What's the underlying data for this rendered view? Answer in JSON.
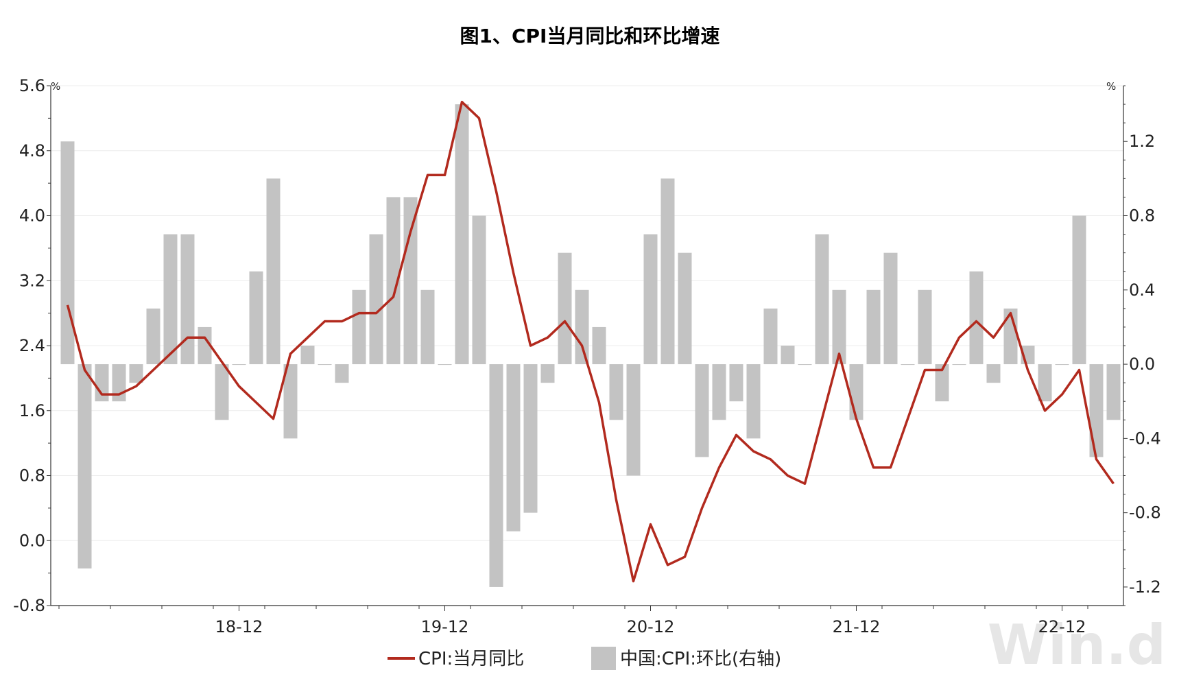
{
  "chart_data": {
    "type": "bar+line",
    "title": "图1、CPI当月同比和环比增速",
    "left_unit": "%",
    "right_unit": "%",
    "left_axis": {
      "min": -0.8,
      "max": 5.6,
      "ticks": [
        -0.8,
        0.0,
        0.8,
        1.6,
        2.4,
        3.2,
        4.0,
        4.8,
        5.6
      ],
      "tick_labels": [
        "-0.8",
        "0.0",
        "0.8",
        "1.6",
        "2.4",
        "3.2",
        "4.0",
        "4.8",
        "5.6"
      ]
    },
    "right_axis": {
      "min": -1.3,
      "max": 1.5,
      "ticks": [
        -1.2,
        -0.8,
        -0.4,
        0.0,
        0.4,
        0.8,
        1.2
      ],
      "tick_labels": [
        "-1.2",
        "-0.8",
        "-0.4",
        "0.0",
        "0.4",
        "0.8",
        "1.2"
      ]
    },
    "x_tick_labels": [
      {
        "index": 10,
        "label": "18-12"
      },
      {
        "index": 22,
        "label": "19-12"
      },
      {
        "index": 34,
        "label": "20-12"
      },
      {
        "index": 46,
        "label": "21-12"
      },
      {
        "index": 58,
        "label": "22-12"
      }
    ],
    "month_count": 62,
    "series": [
      {
        "name": "CPI:当月同比",
        "axis": "left",
        "kind": "line",
        "color": "#b22a1e",
        "values": [
          2.9,
          2.1,
          1.8,
          1.8,
          1.9,
          2.1,
          2.3,
          2.5,
          2.5,
          2.2,
          1.9,
          1.7,
          1.5,
          2.3,
          2.5,
          2.7,
          2.7,
          2.8,
          2.8,
          3.0,
          3.8,
          4.5,
          4.5,
          5.4,
          5.2,
          4.3,
          3.3,
          2.4,
          2.5,
          2.7,
          2.4,
          1.7,
          0.5,
          -0.5,
          0.2,
          -0.3,
          -0.2,
          0.4,
          0.9,
          1.3,
          1.1,
          1.0,
          0.8,
          0.7,
          1.5,
          2.3,
          1.5,
          0.9,
          0.9,
          1.5,
          2.1,
          2.1,
          2.5,
          2.7,
          2.5,
          2.8,
          2.1,
          1.6,
          1.8,
          2.1,
          1.0,
          0.7
        ]
      },
      {
        "name": "中国:CPI:环比(右轴)",
        "axis": "right",
        "kind": "bar",
        "color": "#c3c3c3",
        "values": [
          1.2,
          -1.1,
          -0.2,
          -0.2,
          -0.1,
          0.3,
          0.7,
          0.7,
          0.2,
          -0.3,
          0.0,
          0.5,
          1.0,
          -0.4,
          0.1,
          0.0,
          -0.1,
          0.4,
          0.7,
          0.9,
          0.9,
          0.4,
          0.0,
          1.4,
          0.8,
          -1.2,
          -0.9,
          -0.8,
          -0.1,
          0.6,
          0.4,
          0.2,
          -0.3,
          -0.6,
          0.7,
          1.0,
          0.6,
          -0.5,
          -0.3,
          -0.2,
          -0.4,
          0.3,
          0.1,
          0.0,
          0.7,
          0.4,
          -0.3,
          0.4,
          0.6,
          0.0,
          0.4,
          -0.2,
          0.0,
          0.5,
          -0.1,
          0.3,
          0.1,
          -0.2,
          0.0,
          0.8,
          -0.5,
          -0.3
        ]
      }
    ],
    "legend": {
      "placement": "bottom",
      "items": [
        {
          "label": "CPI:当月同比",
          "symbol": "line",
          "color": "#b22a1e"
        },
        {
          "label": "中国:CPI:环比(右轴)",
          "symbol": "box",
          "color": "#c3c3c3"
        }
      ]
    },
    "grid": true,
    "watermark": "Win.d"
  }
}
